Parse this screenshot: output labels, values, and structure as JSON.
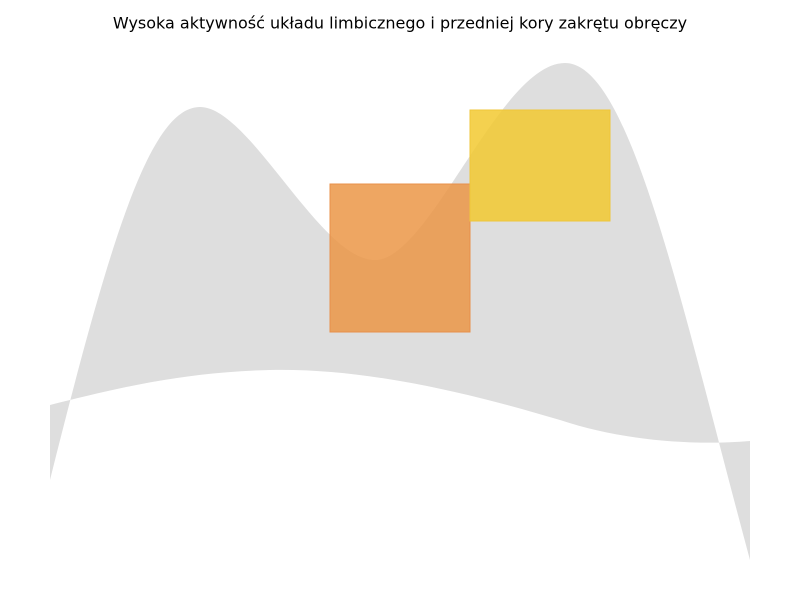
{
  "header": {
    "title": "Wysoka aktywność układu limbicznego i przedniej kory zakrętu obręczy"
  }
}
